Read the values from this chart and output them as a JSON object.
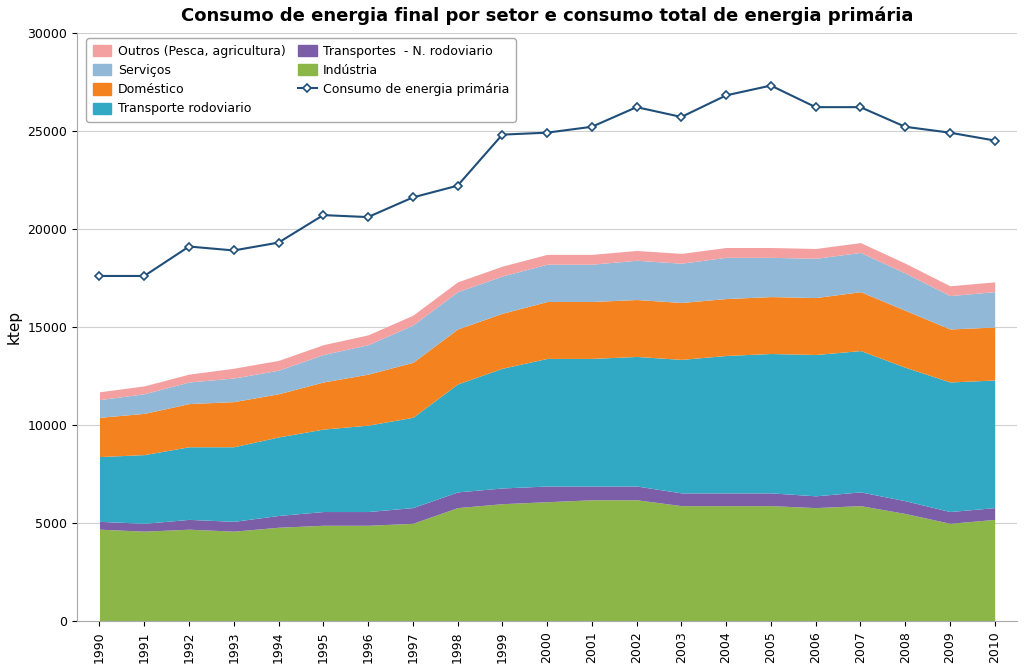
{
  "title": "Consumo de energia final por setor e consumo total de energia primária",
  "ylabel": "ktep",
  "years": [
    1990,
    1991,
    1992,
    1993,
    1994,
    1995,
    1996,
    1997,
    1998,
    1999,
    2000,
    2001,
    2002,
    2003,
    2004,
    2005,
    2006,
    2007,
    2008,
    2009,
    2010
  ],
  "industria": [
    4700,
    4600,
    4700,
    4600,
    4800,
    4900,
    4900,
    5000,
    5800,
    6000,
    6100,
    6200,
    6200,
    5900,
    5900,
    5900,
    5800,
    5900,
    5500,
    5000,
    5200
  ],
  "transp_n_rod": [
    400,
    400,
    500,
    500,
    600,
    700,
    700,
    800,
    800,
    800,
    800,
    700,
    700,
    650,
    650,
    650,
    600,
    700,
    650,
    600,
    600
  ],
  "transp_rod": [
    3300,
    3500,
    3700,
    3800,
    4000,
    4200,
    4400,
    4600,
    5500,
    6100,
    6500,
    6500,
    6600,
    6800,
    7000,
    7100,
    7200,
    7200,
    6800,
    6600,
    6500
  ],
  "domestico": [
    2000,
    2100,
    2200,
    2300,
    2200,
    2400,
    2600,
    2800,
    2800,
    2800,
    2900,
    2900,
    2900,
    2900,
    2900,
    2900,
    2900,
    3000,
    2900,
    2700,
    2700
  ],
  "servicos": [
    900,
    1000,
    1100,
    1200,
    1200,
    1400,
    1500,
    1900,
    1900,
    1900,
    1900,
    1900,
    2000,
    2000,
    2100,
    2000,
    2000,
    2000,
    1900,
    1700,
    1800
  ],
  "outros": [
    400,
    400,
    400,
    500,
    500,
    500,
    500,
    500,
    500,
    500,
    500,
    500,
    500,
    500,
    500,
    500,
    500,
    500,
    500,
    500,
    500
  ],
  "energia_primaria": [
    17600,
    17600,
    19100,
    18900,
    19300,
    20700,
    20600,
    21600,
    22200,
    24800,
    24900,
    25200,
    26200,
    25700,
    26800,
    27300,
    26200,
    26200,
    25200,
    24900,
    24500
  ],
  "colors": {
    "industria": "#8db648",
    "transp_n_rod": "#7b5ea7",
    "transp_rod": "#31a9c4",
    "domestico": "#f4831f",
    "servicos": "#92b8d8",
    "outros": "#f4a0a0"
  },
  "line_color": "#1f4e79",
  "line_marker_color": "#2e75b6",
  "ylim": [
    0,
    30000
  ],
  "yticks": [
    0,
    5000,
    10000,
    15000,
    20000,
    25000,
    30000
  ],
  "legend_labels": {
    "outros": "Outros (Pesca, agricultura)",
    "servicos": "Serviços",
    "domestico": "Doméstico",
    "transp_rod": "Transporte rodoviario",
    "transp_n_rod": "Transportes  - N. rodoviario",
    "industria": "Indústria",
    "linha": "Consumo de energia primária"
  },
  "background_color": "#ffffff",
  "plot_background": "#ffffff"
}
